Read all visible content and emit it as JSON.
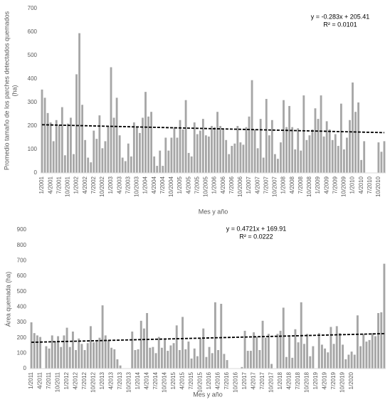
{
  "chart_data": [
    {
      "type": "bar",
      "color": "#a6a6a6",
      "ylim": [
        0,
        700
      ],
      "yticks": [
        0,
        100,
        200,
        300,
        400,
        500,
        600,
        700
      ],
      "ylabel": [
        "Promedio tamaño de los parches detectados quemados",
        "(ha)"
      ],
      "xlabel": "Mes y año",
      "trendline": {
        "slope": -0.283,
        "intercept": 205.41,
        "label": "y = -0.283x + 205.41",
        "r2": "R² = 0.0101"
      },
      "categories": [
        "1/2001",
        null,
        null,
        "4/2001",
        null,
        null,
        "7/2001",
        null,
        null,
        "10/2001",
        null,
        null,
        "1/2002",
        null,
        null,
        "4/2002",
        null,
        null,
        "7/2002",
        null,
        null,
        "10/2002",
        null,
        null,
        "1/2003",
        null,
        null,
        "4/2003",
        null,
        null,
        "7/2003",
        null,
        null,
        "10/2003",
        null,
        null,
        "1/2004",
        null,
        null,
        "4/2004",
        null,
        null,
        "7/2004",
        null,
        null,
        "10/2004",
        null,
        null,
        "1/2005",
        null,
        null,
        "4/2005",
        null,
        null,
        "7/2005",
        null,
        null,
        "10/2005",
        null,
        null,
        "1/2006",
        null,
        null,
        "4/2006",
        null,
        null,
        "7/2006",
        null,
        null,
        "10/2006",
        null,
        null,
        "1/2007",
        null,
        null,
        "4/2007",
        null,
        null,
        "7/2007",
        null,
        null,
        "10/2007",
        null,
        null,
        "1/2008",
        null,
        null,
        "4/2008",
        null,
        null,
        "7/2008",
        null,
        null,
        "10/2008",
        null,
        null,
        "1/2009",
        null,
        null,
        "4/2009",
        null,
        null,
        "7/2009",
        null,
        null,
        "10/2009",
        null,
        null,
        "1/2010",
        null,
        null,
        "4/2010",
        null,
        null,
        "7/2010",
        null,
        null,
        "10/2010",
        null,
        null
      ],
      "values": [
        355,
        320,
        255,
        215,
        135,
        225,
        205,
        280,
        75,
        210,
        235,
        80,
        420,
        595,
        290,
        140,
        65,
        45,
        180,
        145,
        245,
        105,
        135,
        200,
        450,
        235,
        320,
        160,
        65,
        50,
        125,
        70,
        215,
        195,
        170,
        235,
        345,
        240,
        260,
        70,
        30,
        95,
        30,
        150,
        95,
        150,
        195,
        150,
        225,
        185,
        310,
        85,
        70,
        215,
        165,
        180,
        230,
        160,
        155,
        200,
        195,
        260,
        200,
        185,
        140,
        80,
        115,
        125,
        200,
        130,
        120,
        195,
        240,
        395,
        185,
        105,
        230,
        65,
        315,
        160,
        225,
        80,
        60,
        130,
        310,
        195,
        285,
        195,
        100,
        190,
        95,
        330,
        140,
        160,
        185,
        275,
        230,
        330,
        155,
        220,
        185,
        140,
        165,
        115,
        295,
        100,
        150,
        225,
        385,
        260,
        300,
        55,
        135,
        0,
        0,
        0,
        0,
        130,
        90,
        135
      ]
    },
    {
      "type": "bar",
      "color": "#a6a6a6",
      "ylim": [
        0,
        900
      ],
      "yticks": [
        0,
        100,
        200,
        300,
        400,
        500,
        600,
        700,
        800,
        900
      ],
      "ylabel": [
        "Área quemada (ha)"
      ],
      "xlabel": "Mes y año",
      "trendline": {
        "slope": 0.4721,
        "intercept": 169.91,
        "label": "y = 0.4721x + 169.91",
        "r2": "R² = 0.0222"
      },
      "categories": [
        "1/2011",
        null,
        null,
        "4/2011",
        null,
        null,
        "7/2011",
        null,
        null,
        "10/2011",
        null,
        null,
        "1/2012",
        null,
        null,
        "4/2012",
        null,
        null,
        "7/2012",
        null,
        null,
        "10/2012",
        null,
        null,
        "1/2013",
        null,
        null,
        "4/2013",
        null,
        null,
        "7/2013",
        null,
        null,
        "10/2013",
        null,
        null,
        "1/2014",
        null,
        null,
        "4/2014",
        null,
        null,
        "7/2014",
        null,
        null,
        "10/2014",
        null,
        null,
        "1/2015",
        null,
        null,
        "4/2015",
        null,
        null,
        "7/2015",
        null,
        null,
        "10/2015",
        null,
        null,
        "1/2016",
        null,
        null,
        "4/2016",
        null,
        null,
        "7/2016",
        null,
        null,
        "10/2016",
        null,
        null,
        "1/2017",
        null,
        null,
        "4/2017",
        null,
        null,
        "7/2017",
        null,
        null,
        "10/2017",
        null,
        null,
        "1/2018",
        null,
        null,
        "4/2018",
        null,
        null,
        "7/2018",
        null,
        null,
        "10/2018",
        null,
        null,
        "1/2019",
        null,
        null,
        "4/2019",
        null,
        null,
        "7/2019",
        null,
        null,
        "10/2019",
        null,
        null,
        "1/2020",
        null,
        null,
        null,
        null,
        null,
        null,
        null,
        null,
        null,
        null,
        null
      ],
      "values": [
        300,
        230,
        215,
        205,
        0,
        145,
        130,
        215,
        175,
        210,
        140,
        215,
        265,
        140,
        240,
        120,
        195,
        160,
        120,
        165,
        275,
        170,
        185,
        200,
        410,
        215,
        185,
        135,
        125,
        60,
        20,
        0,
        0,
        0,
        240,
        120,
        125,
        310,
        260,
        360,
        135,
        140,
        100,
        205,
        135,
        195,
        115,
        150,
        165,
        280,
        120,
        335,
        125,
        175,
        65,
        130,
        80,
        195,
        260,
        75,
        140,
        100,
        430,
        120,
        420,
        95,
        55,
        0,
        0,
        0,
        0,
        10,
        245,
        115,
        115,
        235,
        205,
        120,
        310,
        200,
        225,
        30,
        0,
        225,
        245,
        395,
        75,
        215,
        70,
        255,
        170,
        430,
        160,
        225,
        80,
        145,
        0,
        230,
        155,
        130,
        105,
        270,
        160,
        275,
        230,
        155,
        60,
        90,
        110,
        90,
        345,
        145,
        225,
        175,
        185,
        230,
        210,
        360,
        365,
        680
      ]
    }
  ]
}
